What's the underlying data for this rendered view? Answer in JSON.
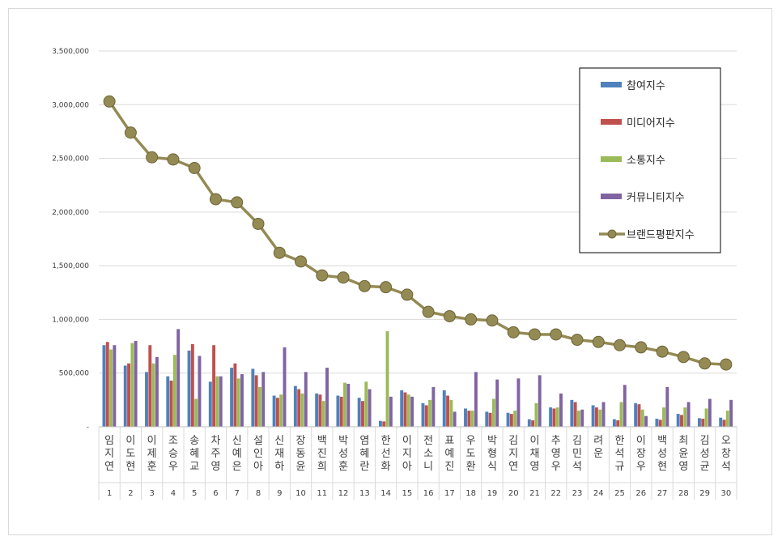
{
  "chart_data": {
    "type": "bar",
    "title": "",
    "xlabel": "",
    "ylabel": "",
    "ylim": [
      0,
      3500000
    ],
    "y_ticks": [
      "-",
      "500,000",
      "1,000,000",
      "1,500,000",
      "2,000,000",
      "2,500,000",
      "3,000,000",
      "3,500,000"
    ],
    "grid": true,
    "legend_position": "top-right",
    "categories": [
      "임지연",
      "이도현",
      "이제훈",
      "조승우",
      "송혜교",
      "차주영",
      "신예은",
      "설인아",
      "신재하",
      "장동윤",
      "백진희",
      "박성훈",
      "염혜란",
      "한선화",
      "이지아",
      "전소니",
      "표예진",
      "우도환",
      "박형식",
      "김지연",
      "이채영",
      "추영우",
      "김민석",
      "려운",
      "한석규",
      "이장우",
      "백성현",
      "최윤영",
      "김성균",
      "오창석"
    ],
    "ranks": [
      "1",
      "2",
      "3",
      "4",
      "5",
      "6",
      "7",
      "8",
      "9",
      "10",
      "11",
      "12",
      "13",
      "14",
      "15",
      "16",
      "17",
      "18",
      "19",
      "20",
      "21",
      "22",
      "23",
      "24",
      "25",
      "26",
      "27",
      "28",
      "29",
      "30"
    ],
    "series": [
      {
        "name": "참여지수",
        "type": "bar",
        "color": "#4f81bd",
        "values": [
          760000,
          570000,
          510000,
          470000,
          710000,
          420000,
          550000,
          540000,
          290000,
          380000,
          310000,
          290000,
          270000,
          55000,
          340000,
          220000,
          340000,
          170000,
          140000,
          130000,
          70000,
          180000,
          250000,
          200000,
          70000,
          220000,
          75000,
          120000,
          80000,
          85000
        ]
      },
      {
        "name": "미디어지수",
        "type": "bar",
        "color": "#c0504d",
        "values": [
          790000,
          590000,
          760000,
          430000,
          770000,
          760000,
          590000,
          480000,
          270000,
          350000,
          300000,
          280000,
          240000,
          50000,
          320000,
          200000,
          290000,
          150000,
          130000,
          120000,
          60000,
          170000,
          230000,
          180000,
          60000,
          210000,
          65000,
          110000,
          75000,
          65000
        ]
      },
      {
        "name": "소통지수",
        "type": "bar",
        "color": "#9bbb59",
        "values": [
          720000,
          780000,
          590000,
          670000,
          260000,
          470000,
          450000,
          370000,
          300000,
          310000,
          240000,
          410000,
          420000,
          890000,
          300000,
          250000,
          250000,
          150000,
          260000,
          150000,
          220000,
          180000,
          150000,
          160000,
          230000,
          160000,
          180000,
          180000,
          170000,
          150000
        ]
      },
      {
        "name": "커뮤니티지수",
        "type": "bar",
        "color": "#8064a2",
        "values": [
          760000,
          800000,
          650000,
          910000,
          660000,
          470000,
          490000,
          510000,
          740000,
          510000,
          550000,
          400000,
          350000,
          280000,
          280000,
          370000,
          140000,
          510000,
          440000,
          450000,
          480000,
          310000,
          160000,
          230000,
          390000,
          100000,
          370000,
          230000,
          260000,
          250000
        ]
      },
      {
        "name": "브랜드평판지수",
        "type": "line",
        "color": "#948a54",
        "values": [
          3030000,
          2740000,
          2510000,
          2490000,
          2410000,
          2120000,
          2090000,
          1890000,
          1620000,
          1540000,
          1410000,
          1390000,
          1310000,
          1300000,
          1230000,
          1070000,
          1030000,
          1000000,
          990000,
          880000,
          860000,
          860000,
          810000,
          790000,
          760000,
          740000,
          700000,
          650000,
          590000,
          580000
        ]
      }
    ]
  }
}
